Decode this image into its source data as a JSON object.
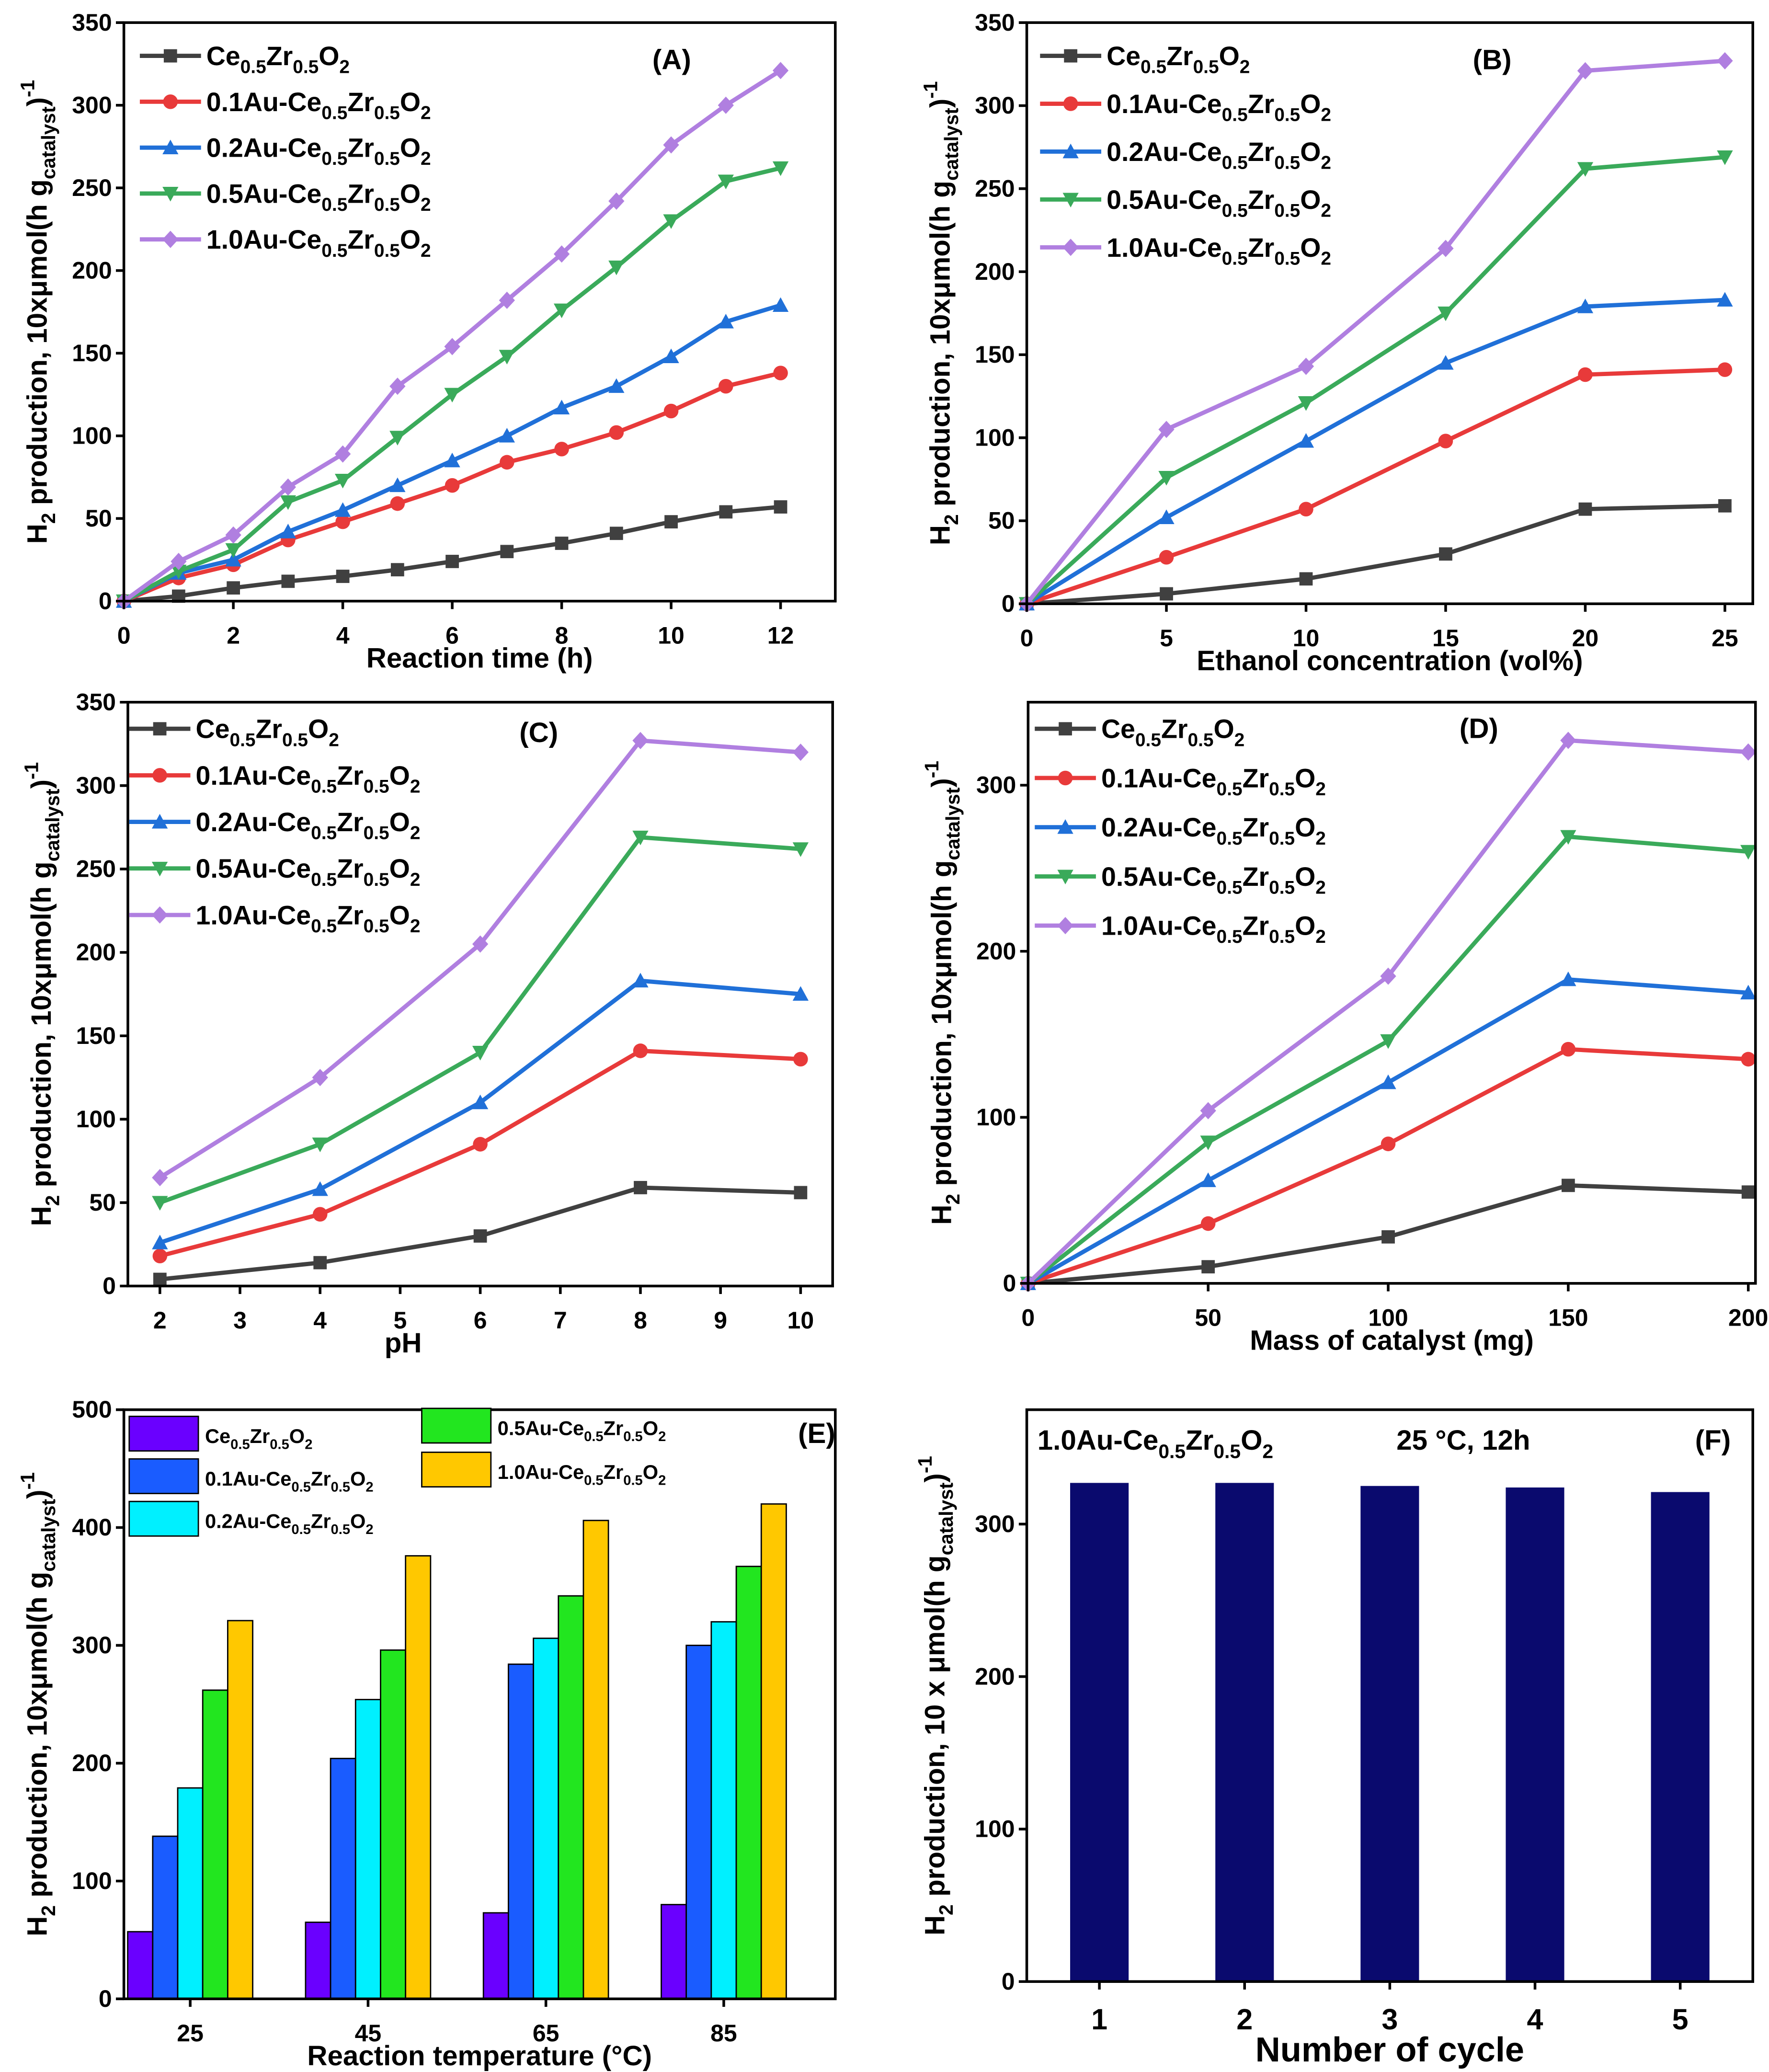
{
  "series_names": [
    "Ce_{0.5}Zr_{0.5}O_{2}",
    "0.1Au-Ce_{0.5}Zr_{0.5}O_{2}",
    "0.2Au-Ce_{0.5}Zr_{0.5}O_{2}",
    "0.5Au-Ce_{0.5}Zr_{0.5}O_{2}",
    "1.0Au-Ce_{0.5}Zr_{0.5}O_{2}"
  ],
  "line_colors": [
    "#404040",
    "#e83a3a",
    "#2070d8",
    "#3aaa5a",
    "#b07fe0"
  ],
  "bar_colors": [
    "#6a00ff",
    "#1a5cff",
    "#00f0ff",
    "#22e61f",
    "#ffc800"
  ],
  "markers": [
    "square",
    "circle",
    "triangle-up",
    "triangle-down",
    "diamond"
  ],
  "chart_data": [
    {
      "panel": "(A)",
      "type": "line",
      "xlabel": "Reaction time (h)",
      "ylabel": "H_{2} production, 10xμmol(h g_{catalyst})^{-1}",
      "xlim": [
        0,
        13
      ],
      "ylim": [
        0,
        350
      ],
      "xticks": [
        0,
        2,
        4,
        6,
        8,
        10,
        12
      ],
      "yticks": [
        0,
        50,
        100,
        150,
        200,
        250,
        300,
        350
      ],
      "x": [
        0,
        1,
        2,
        3,
        4,
        5,
        6,
        7,
        8,
        9,
        10,
        11,
        12
      ],
      "series": [
        {
          "name": "Ce_{0.5}Zr_{0.5}O_{2}",
          "values": [
            0,
            3,
            8,
            12,
            15,
            19,
            24,
            30,
            35,
            41,
            48,
            54,
            57
          ]
        },
        {
          "name": "0.1Au-Ce_{0.5}Zr_{0.5}O_{2}",
          "values": [
            0,
            14,
            22,
            37,
            48,
            59,
            70,
            84,
            92,
            102,
            115,
            130,
            138
          ]
        },
        {
          "name": "0.2Au-Ce_{0.5}Zr_{0.5}O_{2}",
          "values": [
            0,
            17,
            25,
            42,
            55,
            70,
            85,
            100,
            117,
            130,
            148,
            169,
            179
          ]
        },
        {
          "name": "0.5Au-Ce_{0.5}Zr_{0.5}O_{2}",
          "values": [
            0,
            18,
            31,
            60,
            73,
            99,
            125,
            148,
            176,
            202,
            230,
            254,
            262
          ]
        },
        {
          "name": "1.0Au-Ce_{0.5}Zr_{0.5}O_{2}",
          "values": [
            0,
            24,
            40,
            69,
            89,
            130,
            154,
            182,
            210,
            242,
            276,
            300,
            321
          ]
        }
      ]
    },
    {
      "panel": "(B)",
      "type": "line",
      "xlabel": "Ethanol concentration (vol%)",
      "ylabel": "H_{2} production, 10xμmol(h g_{catalyst})^{-1}",
      "xlim": [
        0,
        26
      ],
      "ylim": [
        0,
        350
      ],
      "xticks": [
        0,
        5,
        10,
        15,
        20,
        25
      ],
      "yticks": [
        0,
        50,
        100,
        150,
        200,
        250,
        300,
        350
      ],
      "x": [
        0,
        5,
        10,
        15,
        20,
        25
      ],
      "series": [
        {
          "name": "Ce_{0.5}Zr_{0.5}O_{2}",
          "values": [
            0,
            6,
            15,
            30,
            57,
            59
          ]
        },
        {
          "name": "0.1Au-Ce_{0.5}Zr_{0.5}O_{2}",
          "values": [
            0,
            28,
            57,
            98,
            138,
            141
          ]
        },
        {
          "name": "0.2Au-Ce_{0.5}Zr_{0.5}O_{2}",
          "values": [
            0,
            52,
            98,
            145,
            179,
            183
          ]
        },
        {
          "name": "0.5Au-Ce_{0.5}Zr_{0.5}O_{2}",
          "values": [
            0,
            76,
            121,
            175,
            262,
            269
          ]
        },
        {
          "name": "1.0Au-Ce_{0.5}Zr_{0.5}O_{2}",
          "values": [
            0,
            105,
            143,
            214,
            321,
            327
          ]
        }
      ]
    },
    {
      "panel": "(C)",
      "type": "line",
      "xlabel": "pH",
      "ylabel": "H_{2} production, 10xμmol(h g_{catalyst})^{-1}",
      "xlim": [
        1.6,
        10.4
      ],
      "ylim": [
        0,
        350
      ],
      "xticks": [
        2,
        3,
        4,
        5,
        6,
        7,
        8,
        9,
        10
      ],
      "yticks": [
        0,
        50,
        100,
        150,
        200,
        250,
        300,
        350
      ],
      "x": [
        2,
        4,
        6,
        8,
        10
      ],
      "series": [
        {
          "name": "Ce_{0.5}Zr_{0.5}O_{2}",
          "values": [
            4,
            14,
            30,
            59,
            56
          ]
        },
        {
          "name": "0.1Au-Ce_{0.5}Zr_{0.5}O_{2}",
          "values": [
            18,
            43,
            85,
            141,
            136
          ]
        },
        {
          "name": "0.2Au-Ce_{0.5}Zr_{0.5}O_{2}",
          "values": [
            26,
            58,
            110,
            183,
            175
          ]
        },
        {
          "name": "0.5Au-Ce_{0.5}Zr_{0.5}O_{2}",
          "values": [
            50,
            85,
            140,
            269,
            262
          ]
        },
        {
          "name": "1.0Au-Ce_{0.5}Zr_{0.5}O_{2}",
          "values": [
            65,
            125,
            205,
            327,
            320
          ]
        }
      ]
    },
    {
      "panel": "(D)",
      "type": "line",
      "xlabel": "Mass of catalyst (mg)",
      "ylabel": "H_{2} production, 10xμmol(h g_{catalyst})^{-1}",
      "xlim": [
        0,
        202
      ],
      "ylim": [
        0,
        350
      ],
      "xticks": [
        0,
        50,
        100,
        150,
        200
      ],
      "yticks": [
        0,
        100,
        200,
        300
      ],
      "x": [
        0,
        50,
        100,
        150,
        200
      ],
      "series": [
        {
          "name": "Ce_{0.5}Zr_{0.5}O_{2}",
          "values": [
            0,
            10,
            28,
            59,
            55
          ]
        },
        {
          "name": "0.1Au-Ce_{0.5}Zr_{0.5}O_{2}",
          "values": [
            0,
            36,
            84,
            141,
            135
          ]
        },
        {
          "name": "0.2Au-Ce_{0.5}Zr_{0.5}O_{2}",
          "values": [
            0,
            62,
            121,
            183,
            175
          ]
        },
        {
          "name": "0.5Au-Ce_{0.5}Zr_{0.5}O_{2}",
          "values": [
            0,
            85,
            146,
            269,
            260
          ]
        },
        {
          "name": "1.0Au-Ce_{0.5}Zr_{0.5}O_{2}",
          "values": [
            0,
            104,
            185,
            327,
            320
          ]
        }
      ]
    },
    {
      "panel": "(E)",
      "type": "bar",
      "xlabel": "Reaction temperature (°C)",
      "ylabel": "H_{2} production, 10xμmol(h g_{catalyst})^{-1}",
      "ylim": [
        0,
        500
      ],
      "yticks": [
        0,
        100,
        200,
        300,
        400,
        500
      ],
      "categories": [
        "25",
        "45",
        "65",
        "85"
      ],
      "series": [
        {
          "name": "Ce_{0.5}Zr_{0.5}O_{2}",
          "values": [
            57,
            65,
            73,
            80
          ]
        },
        {
          "name": "0.1Au-Ce_{0.5}Zr_{0.5}O_{2}",
          "values": [
            138,
            204,
            284,
            300
          ]
        },
        {
          "name": "0.2Au-Ce_{0.5}Zr_{0.5}O_{2}",
          "values": [
            179,
            254,
            306,
            320
          ]
        },
        {
          "name": "0.5Au-Ce_{0.5}Zr_{0.5}O_{2}",
          "values": [
            262,
            296,
            342,
            367
          ]
        },
        {
          "name": "1.0Au-Ce_{0.5}Zr_{0.5}O_{2}",
          "values": [
            321,
            376,
            406,
            420
          ]
        }
      ]
    },
    {
      "panel": "(F)",
      "type": "bar",
      "xlabel": "Number of cycle",
      "ylabel": "H_{2} production, 10 x μmol(h g_{catalyst})^{-1}",
      "ylim": [
        0,
        375
      ],
      "yticks": [
        0,
        100,
        200,
        300
      ],
      "categories": [
        "1",
        "2",
        "3",
        "4",
        "5"
      ],
      "color": "#0a0a6e",
      "annotations": [
        "1.0Au-Ce_{0.5}Zr_{0.5}O_{2}",
        "25 °C, 12h"
      ],
      "series": [
        {
          "values": [
            327,
            327,
            325,
            324,
            321
          ]
        }
      ]
    }
  ]
}
